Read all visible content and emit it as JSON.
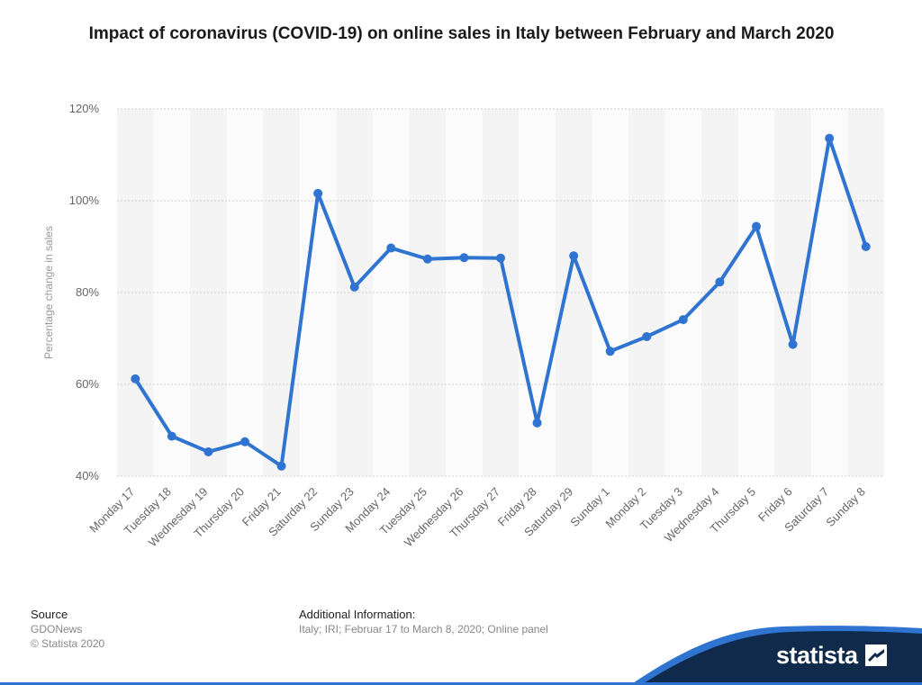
{
  "title": "Impact of coronavirus (COVID-19) on online sales in Italy between February and March 2020",
  "chart_data": {
    "type": "line",
    "title": "Impact of coronavirus (COVID-19) on online sales in Italy between February and March 2020",
    "xlabel": "",
    "ylabel": "Percentage change in sales",
    "categories": [
      "Monday 17",
      "Tuesday 18",
      "Wednesday 19",
      "Thursday 20",
      "Friday 21",
      "Saturday 22",
      "Sunday 23",
      "Monday 24",
      "Tuesday 25",
      "Wednesday 26",
      "Thursday 27",
      "Friday 28",
      "Saturday 29",
      "Sunday 1",
      "Monday 2",
      "Tuesday 3",
      "Wednesday 4",
      "Thursday 5",
      "Friday 6",
      "Saturday 7",
      "Sunday 8"
    ],
    "series": [
      {
        "values": [
          61.2,
          48.7,
          45.3,
          47.5,
          42.2,
          101.6,
          81.2,
          89.7,
          87.3,
          87.6,
          87.5,
          51.6,
          88.0,
          67.2,
          70.4,
          74.1,
          82.3,
          94.4,
          68.7,
          113.6,
          90.0
        ]
      }
    ],
    "ylim": [
      40,
      120
    ],
    "yticks": [
      40,
      60,
      80,
      100,
      120
    ],
    "ytick_labels": [
      "40%",
      "60%",
      "80%",
      "100%",
      "120%"
    ],
    "grid": true,
    "line_color": "#2f74d0"
  },
  "footer": {
    "source_label": "Source",
    "source_value": "GDONews",
    "copyright": "© Statista 2020",
    "info_label": "Additional Information:",
    "info_value": "Italy; IRI; Februar 17 to March 8, 2020; Online panel"
  },
  "brand": {
    "name": "statista",
    "color": "#0f2a4a",
    "accent": "#2f74d0"
  }
}
